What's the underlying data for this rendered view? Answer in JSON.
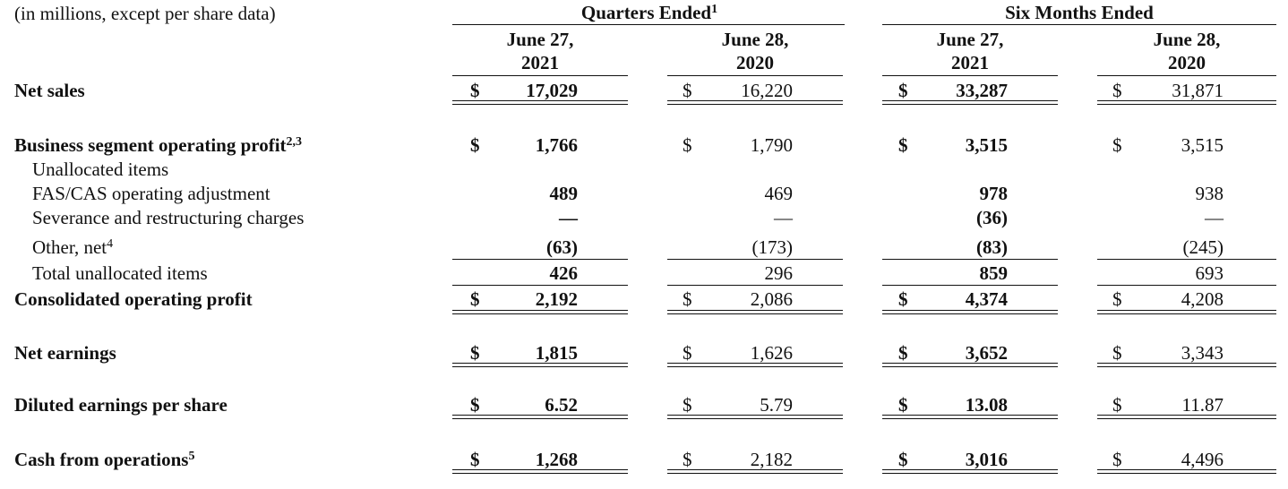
{
  "header": {
    "units_note": "(in millions, except per share data)",
    "quarters_label": "Quarters Ended",
    "quarters_sup": "1",
    "six_months_label": "Six Months Ended",
    "col1_line1": "June 27,",
    "col1_line2": "2021",
    "col2_line1": "June 28,",
    "col2_line2": "2020",
    "col3_line1": "June 27,",
    "col3_line2": "2021",
    "col4_line1": "June 28,",
    "col4_line2": "2020"
  },
  "currency": "$",
  "rows": {
    "net_sales": {
      "label": "Net sales",
      "v": [
        "17,029",
        "16,220",
        "33,287",
        "31,871"
      ]
    },
    "bsop": {
      "label": "Business segment operating profit",
      "sup": "2,3",
      "v": [
        "1,766",
        "1,790",
        "3,515",
        "3,515"
      ]
    },
    "unallocated": {
      "label": "Unallocated items"
    },
    "fas_cas": {
      "label": "FAS/CAS operating adjustment",
      "v": [
        "489",
        "469",
        "978",
        "938"
      ]
    },
    "severance": {
      "label": "Severance and restructuring charges",
      "v": [
        "—",
        "—",
        "(36)",
        "—"
      ]
    },
    "other_net": {
      "label": "Other, net",
      "sup": "4",
      "v": [
        "(63)",
        "(173)",
        "(83)",
        "(245)"
      ]
    },
    "total_unalloc": {
      "label": "Total unallocated items",
      "v": [
        "426",
        "296",
        "859",
        "693"
      ]
    },
    "consolidated": {
      "label": "Consolidated operating profit",
      "v": [
        "2,192",
        "2,086",
        "4,374",
        "4,208"
      ]
    },
    "net_earnings": {
      "label": "Net earnings",
      "v": [
        "1,815",
        "1,626",
        "3,652",
        "3,343"
      ]
    },
    "diluted_eps": {
      "label": "Diluted earnings per share",
      "v": [
        "6.52",
        "5.79",
        "13.08",
        "11.87"
      ]
    },
    "cash_ops": {
      "label": "Cash from operations",
      "sup": "5",
      "v": [
        "1,268",
        "2,182",
        "3,016",
        "4,496"
      ]
    }
  }
}
